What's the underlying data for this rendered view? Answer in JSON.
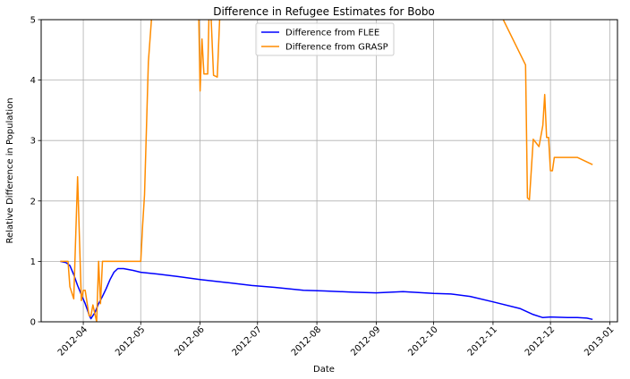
{
  "chart_data": {
    "type": "line",
    "title": "Difference in Refugee Estimates for Bobo",
    "xlabel": "Date",
    "ylabel": "Relative Difference in Population",
    "xlim": [
      "2012-03-10",
      "2013-01-05"
    ],
    "ylim": [
      0,
      5
    ],
    "y_ticks": [
      0,
      1,
      2,
      3,
      4,
      5
    ],
    "x_ticks": [
      "2012-04",
      "2012-05",
      "2012-06",
      "2012-07",
      "2012-08",
      "2012-09",
      "2012-10",
      "2012-11",
      "2012-12",
      "2013-01"
    ],
    "grid": true,
    "legend_position": "top-center",
    "series": [
      {
        "name": "Difference from FLEE",
        "color": "#0000ff",
        "points": [
          [
            "2012-03-20",
            1.0
          ],
          [
            "2012-03-23",
            0.98
          ],
          [
            "2012-03-25",
            0.93
          ],
          [
            "2012-03-27",
            0.78
          ],
          [
            "2012-03-29",
            0.6
          ],
          [
            "2012-03-31",
            0.45
          ],
          [
            "2012-04-02",
            0.3
          ],
          [
            "2012-04-04",
            0.12
          ],
          [
            "2012-04-05",
            0.05
          ],
          [
            "2012-04-07",
            0.15
          ],
          [
            "2012-04-09",
            0.3
          ],
          [
            "2012-04-11",
            0.42
          ],
          [
            "2012-04-13",
            0.55
          ],
          [
            "2012-04-15",
            0.7
          ],
          [
            "2012-04-17",
            0.82
          ],
          [
            "2012-04-19",
            0.88
          ],
          [
            "2012-04-22",
            0.88
          ],
          [
            "2012-04-27",
            0.85
          ],
          [
            "2012-05-01",
            0.82
          ],
          [
            "2012-05-10",
            0.79
          ],
          [
            "2012-05-20",
            0.75
          ],
          [
            "2012-06-01",
            0.7
          ],
          [
            "2012-06-15",
            0.65
          ],
          [
            "2012-06-28",
            0.6
          ],
          [
            "2012-07-10",
            0.57
          ],
          [
            "2012-07-25",
            0.52
          ],
          [
            "2012-08-05",
            0.51
          ],
          [
            "2012-08-20",
            0.49
          ],
          [
            "2012-09-01",
            0.48
          ],
          [
            "2012-09-15",
            0.5
          ],
          [
            "2012-10-01",
            0.47
          ],
          [
            "2012-10-10",
            0.46
          ],
          [
            "2012-10-20",
            0.42
          ],
          [
            "2012-11-01",
            0.33
          ],
          [
            "2012-11-15",
            0.22
          ],
          [
            "2012-11-22",
            0.12
          ],
          [
            "2012-11-27",
            0.07
          ],
          [
            "2012-12-01",
            0.08
          ],
          [
            "2012-12-10",
            0.07
          ],
          [
            "2012-12-15",
            0.07
          ],
          [
            "2012-12-20",
            0.06
          ],
          [
            "2012-12-23",
            0.04
          ]
        ]
      },
      {
        "name": "Difference from GRASP",
        "color": "#ff8c00",
        "points": [
          [
            "2012-03-20",
            1.0
          ],
          [
            "2012-03-24",
            1.0
          ],
          [
            "2012-03-25",
            0.58
          ],
          [
            "2012-03-27",
            0.38
          ],
          [
            "2012-03-29",
            2.4
          ],
          [
            "2012-03-31",
            0.35
          ],
          [
            "2012-04-01",
            0.52
          ],
          [
            "2012-04-02",
            0.52
          ],
          [
            "2012-04-04",
            0.1
          ],
          [
            "2012-04-05",
            0.1
          ],
          [
            "2012-04-06",
            0.28
          ],
          [
            "2012-04-08",
            0.0
          ],
          [
            "2012-04-09",
            1.0
          ],
          [
            "2012-04-10",
            0.3
          ],
          [
            "2012-04-11",
            1.0
          ],
          [
            "2012-04-20",
            1.0
          ],
          [
            "2012-05-01",
            1.0
          ],
          [
            "2012-05-02",
            1.6
          ],
          [
            "2012-05-03",
            2.1
          ],
          [
            "2012-05-05",
            4.3
          ],
          [
            "2012-05-08",
            5.6
          ],
          [
            "2012-05-31",
            5.6
          ],
          [
            "2012-06-01",
            3.82
          ],
          [
            "2012-06-02",
            4.68
          ],
          [
            "2012-06-03",
            4.1
          ],
          [
            "2012-06-05",
            4.1
          ],
          [
            "2012-06-06",
            5.6
          ],
          [
            "2012-06-08",
            4.08
          ],
          [
            "2012-06-10",
            4.05
          ],
          [
            "2012-06-12",
            5.6
          ],
          [
            "2012-10-28",
            5.6
          ],
          [
            "2012-11-18",
            4.25
          ],
          [
            "2012-11-19",
            2.05
          ],
          [
            "2012-11-20",
            2.02
          ],
          [
            "2012-11-22",
            3.02
          ],
          [
            "2012-11-25",
            2.9
          ],
          [
            "2012-11-27",
            3.25
          ],
          [
            "2012-11-28",
            3.76
          ],
          [
            "2012-11-29",
            3.05
          ],
          [
            "2012-11-30",
            3.05
          ],
          [
            "2012-12-01",
            2.5
          ],
          [
            "2012-12-02",
            2.5
          ],
          [
            "2012-12-03",
            2.72
          ],
          [
            "2012-12-15",
            2.72
          ],
          [
            "2012-12-23",
            2.6
          ]
        ]
      }
    ]
  }
}
